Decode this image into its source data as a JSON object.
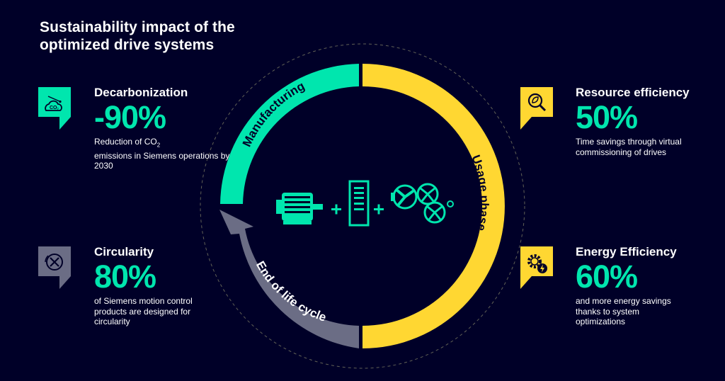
{
  "title": "Sustainability impact of the optimized drive systems",
  "colors": {
    "background": "#000028",
    "teal": "#00E6AE",
    "yellow": "#FFD732",
    "gray": "#6B6D85"
  },
  "cycle": {
    "manufacturing": "Manufacturing",
    "usage": "Usage phase",
    "end_of_life": "End of life cycle"
  },
  "center": {
    "items": [
      "motor-icon",
      "drive-cabinet-icon",
      "pump-fan-compressor-icon"
    ],
    "plus": "+"
  },
  "decarbonization": {
    "icon": "co2-icon",
    "heading": "Decarbonization",
    "value": "-90%",
    "desc_pre": "Reduction of CO",
    "desc_sub": "2",
    "desc_post": "emissions in Siemens operations by 2030"
  },
  "circularity": {
    "icon": "no-tools-icon",
    "heading": "Circularity",
    "value": "80%",
    "desc": "of Siemens motion control products are designed for circularity"
  },
  "resource": {
    "icon": "leaf-magnifier-icon",
    "heading": "Resource efficiency",
    "value": "50%",
    "desc": "Time savings through virtual commissioning of drives"
  },
  "energy": {
    "icon": "gear-lightning-icon",
    "heading": "Energy Efficiency",
    "value": "60%",
    "desc": "and more energy savings thanks to system optimizations"
  }
}
